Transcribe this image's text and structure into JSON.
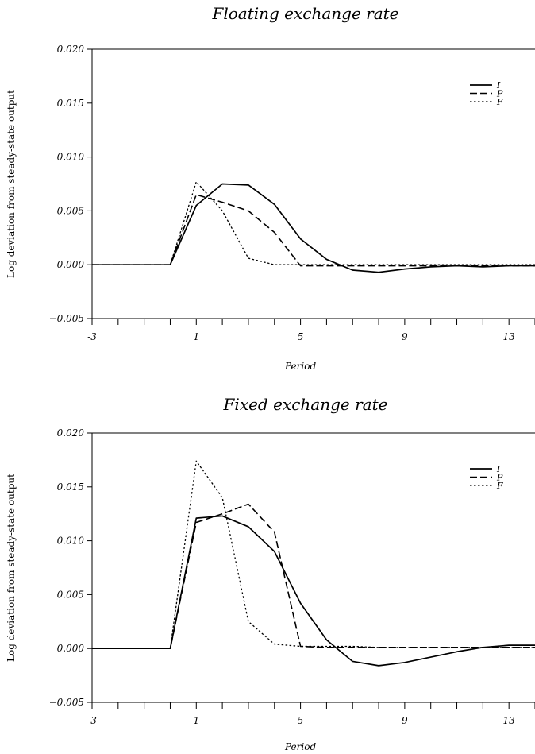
{
  "chart_data": [
    {
      "type": "line",
      "title": "Floating exchange rate",
      "xlabel": "Period",
      "ylabel": "Log deviation from steady-state output",
      "xlim": [
        -3,
        14
      ],
      "ylim": [
        -0.005,
        0.02
      ],
      "x_ticks": [
        "-3",
        "1",
        "5",
        "9",
        "13"
      ],
      "y_ticks": [
        "0.020",
        "0.015",
        "0.010",
        "0.005",
        "0.000",
        "−0.005"
      ],
      "legend": "top-right",
      "grid": false,
      "x": [
        -3,
        -2,
        -1,
        0,
        1,
        2,
        3,
        4,
        5,
        6,
        7,
        8,
        9,
        10,
        11,
        12,
        13,
        14
      ],
      "series": [
        {
          "name": "I",
          "style": "solid",
          "values": [
            0,
            0,
            0,
            0,
            0.0055,
            0.0075,
            0.0074,
            0.0056,
            0.0024,
            0.0005,
            -0.0005,
            -0.0007,
            -0.0004,
            -0.0002,
            -0.0001,
            -0.0002,
            -0.0001,
            -0.0001
          ]
        },
        {
          "name": "P",
          "style": "dashed",
          "values": [
            0,
            0,
            0,
            0,
            0.0065,
            0.0058,
            0.005,
            0.003,
            -0.0001,
            -0.0001,
            -0.0001,
            -0.0001,
            -0.0001,
            -0.0001,
            -0.0001,
            -0.0001,
            -0.0001,
            -0.0001
          ]
        },
        {
          "name": "F",
          "style": "dotted",
          "values": [
            0,
            0,
            0,
            0,
            0.0077,
            0.005,
            0.0006,
            0.0,
            0.0,
            0.0,
            0.0,
            0.0,
            0.0,
            0.0,
            0.0,
            0.0,
            0.0,
            0.0
          ]
        }
      ]
    },
    {
      "type": "line",
      "title": "Fixed exchange rate",
      "xlabel": "Period",
      "ylabel": "Log deviation from steady-state output",
      "xlim": [
        -3,
        14
      ],
      "ylim": [
        -0.005,
        0.02
      ],
      "x_ticks": [
        "-3",
        "1",
        "5",
        "9",
        "13"
      ],
      "y_ticks": [
        "0.020",
        "0.015",
        "0.010",
        "0.005",
        "0.000",
        "−0.005"
      ],
      "legend": "top-right",
      "grid": false,
      "x": [
        -3,
        -2,
        -1,
        0,
        1,
        2,
        3,
        4,
        5,
        6,
        7,
        8,
        9,
        10,
        11,
        12,
        13,
        14
      ],
      "series": [
        {
          "name": "I",
          "style": "solid",
          "values": [
            0,
            0,
            0,
            0,
            0.0121,
            0.0123,
            0.0113,
            0.009,
            0.0042,
            0.0008,
            -0.0012,
            -0.0016,
            -0.0013,
            -0.0008,
            -0.0003,
            0.0001,
            0.0003,
            0.0003
          ]
        },
        {
          "name": "P",
          "style": "dashed",
          "values": [
            0,
            0,
            0,
            0,
            0.0117,
            0.0125,
            0.0134,
            0.0108,
            0.0002,
            0.0001,
            0.0001,
            0.0001,
            0.0001,
            0.0001,
            0.0001,
            0.0001,
            0.0001,
            0.0001
          ]
        },
        {
          "name": "F",
          "style": "dotted",
          "values": [
            0,
            0,
            0,
            0,
            0.0174,
            0.014,
            0.0025,
            0.0004,
            0.0002,
            0.0002,
            0.0002,
            0.0001,
            0.0001,
            0.0001,
            0.0001,
            0.0001,
            0.0001,
            0.0001
          ]
        }
      ]
    }
  ]
}
